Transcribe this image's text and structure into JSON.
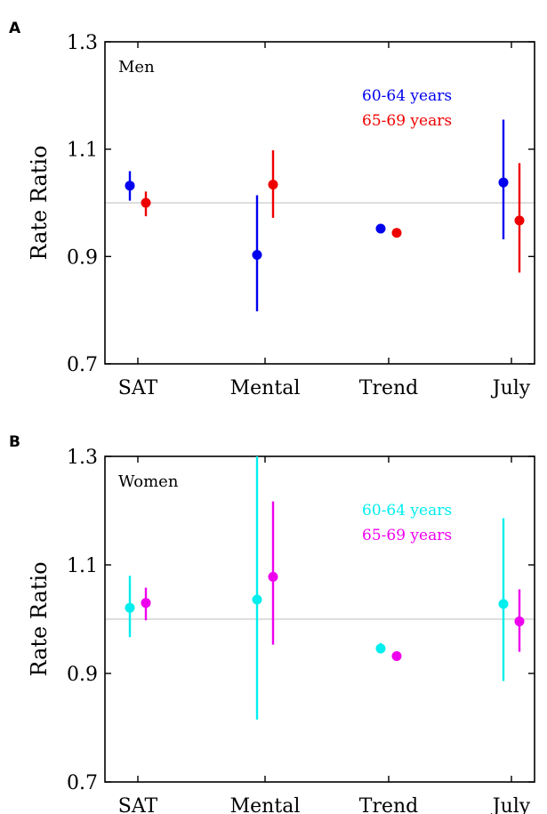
{
  "chart_data": [
    {
      "panel": "A",
      "type": "scatter",
      "group_label": "Men",
      "ylabel": "Rate Ratio",
      "ylim": [
        0.7,
        1.3
      ],
      "yticks": [
        "0.7",
        "0.9",
        "1.1",
        "1.3"
      ],
      "reference_line": 1.0,
      "categories": [
        "SAT",
        "Mental",
        "Trend",
        "July"
      ],
      "series": [
        {
          "name": "60-64 years",
          "color": "#0000ee",
          "values": [
            1.032,
            0.903,
            0.952,
            1.038
          ],
          "lower": [
            1.004,
            0.798,
            0.952,
            0.932
          ],
          "upper": [
            1.059,
            1.014,
            0.952,
            1.155
          ]
        },
        {
          "name": "65-69 years",
          "color": "#ee0000",
          "values": [
            1.0,
            1.034,
            0.944,
            0.967
          ],
          "lower": [
            0.975,
            0.972,
            0.944,
            0.87
          ],
          "upper": [
            1.021,
            1.098,
            0.944,
            1.074
          ]
        }
      ]
    },
    {
      "panel": "B",
      "type": "scatter",
      "group_label": "Women",
      "ylabel": "Rate Ratio",
      "ylim": [
        0.7,
        1.3
      ],
      "yticks": [
        "0.7",
        "0.9",
        "1.1",
        "1.3"
      ],
      "reference_line": 1.0,
      "categories": [
        "SAT",
        "Mental",
        "Trend",
        "July"
      ],
      "series": [
        {
          "name": "60-64 years",
          "color": "#00eeee",
          "values": [
            1.021,
            1.036,
            0.946,
            1.028
          ],
          "lower": [
            0.967,
            0.815,
            0.937,
            0.886
          ],
          "upper": [
            1.08,
            1.3,
            0.956,
            1.186
          ]
        },
        {
          "name": "65-69 years",
          "color": "#ee00ee",
          "values": [
            1.03,
            1.078,
            0.932,
            0.996
          ],
          "lower": [
            0.998,
            0.953,
            0.932,
            0.94
          ],
          "upper": [
            1.058,
            1.217,
            0.932,
            1.055
          ]
        }
      ]
    }
  ]
}
